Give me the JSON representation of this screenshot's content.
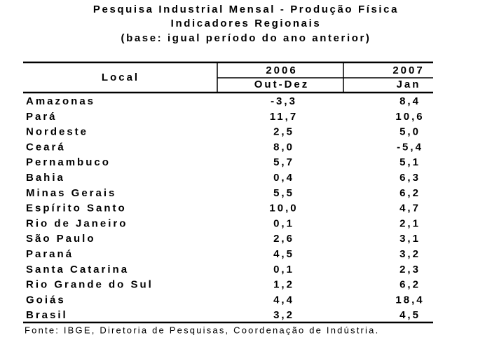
{
  "title": [
    "Pesquisa Industrial Mensal - Produção Física",
    "Indicadores Regionais",
    "(base: igual período do ano anterior)"
  ],
  "table": {
    "header": {
      "local": "Local",
      "years": [
        "2006",
        "2007"
      ],
      "periods": [
        "Out-Dez",
        "Jan"
      ]
    },
    "rows": [
      [
        "Amazonas",
        "-3,3",
        "8,4"
      ],
      [
        "Pará",
        "11,7",
        "10,6"
      ],
      [
        "Nordeste",
        "2,5",
        "5,0"
      ],
      [
        "Ceará",
        "8,0",
        "-5,4"
      ],
      [
        "Pernambuco",
        "5,7",
        "5,1"
      ],
      [
        "Bahia",
        "0,4",
        "6,3"
      ],
      [
        "Minas Gerais",
        "5,5",
        "6,2"
      ],
      [
        "Espírito Santo",
        "10,0",
        "4,7"
      ],
      [
        "Rio de Janeiro",
        "0,1",
        "2,1"
      ],
      [
        "São Paulo",
        "2,6",
        "3,1"
      ],
      [
        "Paraná",
        "4,5",
        "3,2"
      ],
      [
        "Santa Catarina",
        "0,1",
        "2,3"
      ],
      [
        "Rio Grande do Sul",
        "1,2",
        "6,2"
      ],
      [
        "Goiás",
        "4,4",
        "18,4"
      ],
      [
        "Brasil",
        "3,2",
        "4,5"
      ]
    ]
  },
  "source": "Fonte: IBGE, Diretoria de Pesquisas, Coordenação de Indústria."
}
